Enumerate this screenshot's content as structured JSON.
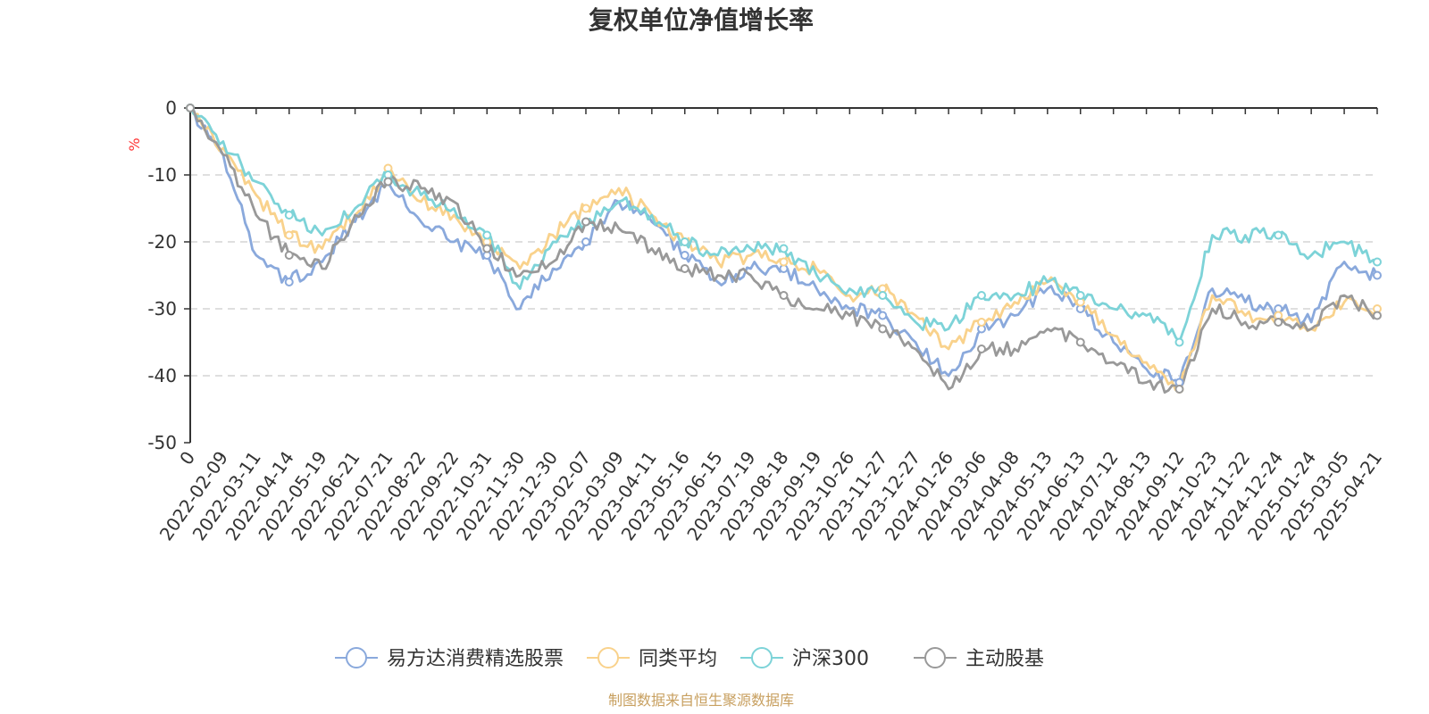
{
  "chart_data": {
    "type": "line",
    "title": "复权单位净值增长率",
    "y_unit": "%",
    "ylim": [
      -50,
      0
    ],
    "y_ticks": [
      "0",
      "-10",
      "-20",
      "-30",
      "-40",
      "-50"
    ],
    "x_tick_labels": [
      "0",
      "2022-02-09",
      "2022-03-11",
      "2022-04-14",
      "2022-05-19",
      "2022-06-21",
      "2022-07-21",
      "2022-08-22",
      "2022-09-22",
      "2022-10-31",
      "2022-11-30",
      "2022-12-30",
      "2023-02-07",
      "2023-03-09",
      "2023-04-11",
      "2023-05-16",
      "2023-06-15",
      "2023-07-19",
      "2023-08-18",
      "2023-09-19",
      "2023-10-26",
      "2023-11-27",
      "2023-12-27",
      "2024-01-26",
      "2024-03-06",
      "2024-04-08",
      "2024-05-13",
      "2024-06-13",
      "2024-07-12",
      "2024-08-13",
      "2024-09-12",
      "2024-10-23",
      "2024-11-22",
      "2024-12-24",
      "2025-01-24",
      "2025-03-05",
      "2025-04-21"
    ],
    "grid": true,
    "legend_position": "bottom-center",
    "series": [
      {
        "name": "易方达消费精选股票",
        "color": "#8aa9dc",
        "values": [
          0,
          -7,
          -22,
          -26,
          -23,
          -17,
          -11,
          -17,
          -20,
          -22,
          -30,
          -24,
          -20,
          -14,
          -17,
          -22,
          -26,
          -24,
          -24,
          -27,
          -30,
          -31,
          -35,
          -40,
          -33,
          -31,
          -27,
          -30,
          -35,
          -39,
          -41,
          -27,
          -29,
          -30,
          -32,
          -23,
          -25
        ]
      },
      {
        "name": "同类平均",
        "color": "#f9d28c",
        "values": [
          0,
          -6,
          -13,
          -19,
          -21,
          -16,
          -9,
          -14,
          -16,
          -20,
          -24,
          -19,
          -15,
          -12,
          -16,
          -20,
          -23,
          -22,
          -23,
          -24,
          -28,
          -27,
          -31,
          -36,
          -32,
          -29,
          -26,
          -29,
          -34,
          -38,
          -42,
          -28,
          -31,
          -31,
          -33,
          -29,
          -30
        ]
      },
      {
        "name": "沪深300",
        "color": "#7dd3d8",
        "values": [
          0,
          -5,
          -11,
          -16,
          -19,
          -15,
          -10,
          -13,
          -15,
          -19,
          -27,
          -20,
          -17,
          -14,
          -16,
          -20,
          -22,
          -21,
          -21,
          -25,
          -27,
          -28,
          -32,
          -33,
          -28,
          -28,
          -26,
          -28,
          -30,
          -31,
          -35,
          -19,
          -19,
          -19,
          -22,
          -20,
          -23
        ]
      },
      {
        "name": "主动股基",
        "color": "#999999",
        "values": [
          0,
          -7,
          -16,
          -22,
          -24,
          -16,
          -11,
          -12,
          -14,
          -21,
          -25,
          -23,
          -17,
          -18,
          -21,
          -24,
          -25,
          -25,
          -28,
          -30,
          -31,
          -33,
          -36,
          -42,
          -36,
          -36,
          -33,
          -35,
          -38,
          -41,
          -42,
          -30,
          -32,
          -32,
          -33,
          -28,
          -31
        ]
      }
    ]
  },
  "credit": "制图数据来自恒生聚源数据库",
  "colors": {
    "credit": "#c8a060",
    "unit": "#ff3333",
    "axis": "#333333",
    "grid": "#cccccc"
  }
}
